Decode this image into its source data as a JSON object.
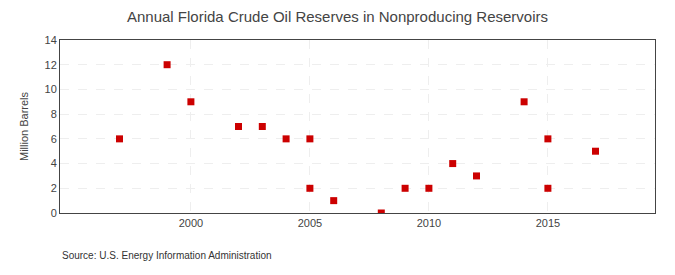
{
  "chart_data": {
    "type": "scatter",
    "title": "Annual Florida Crude Oil Reserves in Nonproducing Reservoirs",
    "ylabel": "Million Barrels",
    "source": "Source: U.S. Energy Information Administration",
    "x": [
      1997,
      1999,
      2000,
      2002,
      2003,
      2004,
      2005,
      2005,
      2006,
      2008,
      2009,
      2010,
      2011,
      2012,
      2014,
      2015,
      2015,
      2017
    ],
    "values": [
      6,
      12,
      9,
      7,
      7,
      6,
      6,
      2,
      1,
      0,
      2,
      2,
      4,
      3,
      9,
      6,
      2,
      5
    ],
    "color": "#cc0000",
    "marker": "square",
    "xlim": [
      1994.5,
      2019.5
    ],
    "ylim": [
      0,
      14
    ],
    "xticks": [
      2000,
      2005,
      2010,
      2015
    ],
    "yticks": [
      0,
      2,
      4,
      6,
      8,
      10,
      12,
      14
    ],
    "grid": true
  }
}
